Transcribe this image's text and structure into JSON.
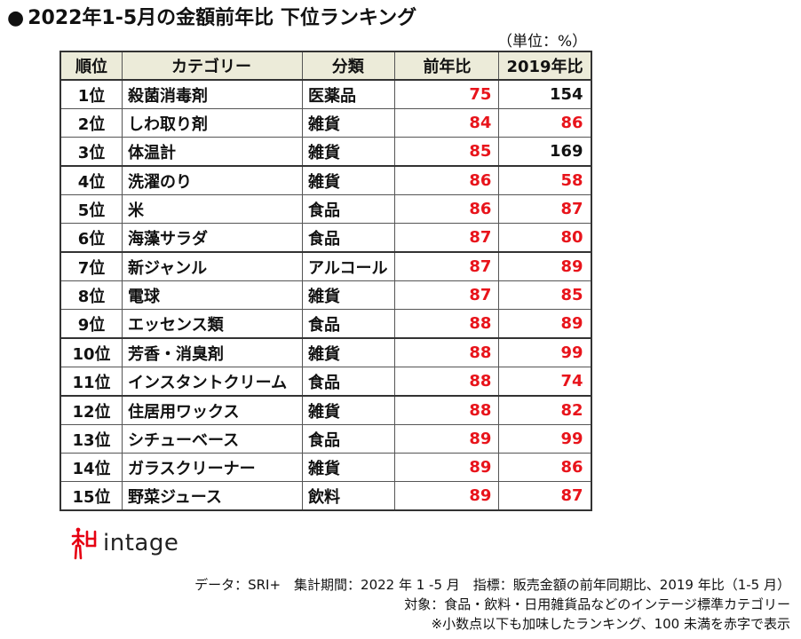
{
  "title": {
    "bullet": "●",
    "text": "2022年1-5月の金額前年比 下位ランキング"
  },
  "unit_label": "（単位：%）",
  "table": {
    "headers": [
      "順位",
      "カテゴリー",
      "分類",
      "前年比",
      "2019年比"
    ],
    "rows": [
      {
        "rank": "1位",
        "category": "殺菌消毒剤",
        "class": "医薬品",
        "yoy": "75",
        "vs2019": "154"
      },
      {
        "rank": "2位",
        "category": "しわ取り剤",
        "class": "雑貨",
        "yoy": "84",
        "vs2019": "86"
      },
      {
        "rank": "3位",
        "category": "体温計",
        "class": "雑貨",
        "yoy": "85",
        "vs2019": "169"
      },
      {
        "rank": "4位",
        "category": "洗濯のり",
        "class": "雑貨",
        "yoy": "86",
        "vs2019": "58"
      },
      {
        "rank": "5位",
        "category": "米",
        "class": "食品",
        "yoy": "86",
        "vs2019": "87"
      },
      {
        "rank": "6位",
        "category": "海藻サラダ",
        "class": "食品",
        "yoy": "87",
        "vs2019": "80"
      },
      {
        "rank": "7位",
        "category": "新ジャンル",
        "class": "アルコール",
        "yoy": "87",
        "vs2019": "89"
      },
      {
        "rank": "8位",
        "category": "電球",
        "class": "雑貨",
        "yoy": "87",
        "vs2019": "85"
      },
      {
        "rank": "9位",
        "category": "エッセンス類",
        "class": "食品",
        "yoy": "88",
        "vs2019": "89"
      },
      {
        "rank": "10位",
        "category": "芳香・消臭剤",
        "class": "雑貨",
        "yoy": "88",
        "vs2019": "99"
      },
      {
        "rank": "11位",
        "category": "インスタントクリーム",
        "class": "食品",
        "yoy": "88",
        "vs2019": "74"
      },
      {
        "rank": "12位",
        "category": "住居用ワックス",
        "class": "雑貨",
        "yoy": "88",
        "vs2019": "82"
      },
      {
        "rank": "13位",
        "category": "シチューベース",
        "class": "食品",
        "yoy": "89",
        "vs2019": "99"
      },
      {
        "rank": "14位",
        "category": "ガラスクリーナー",
        "class": "雑貨",
        "yoy": "89",
        "vs2019": "86"
      },
      {
        "rank": "15位",
        "category": "野菜ジュース",
        "class": "飲料",
        "yoy": "89",
        "vs2019": "87"
      }
    ]
  },
  "colors": {
    "below_100": "#e8141b",
    "at_or_above_100": "#111111",
    "header_bg": "#ecebd9",
    "logo_red": "#e60012"
  },
  "logo": {
    "icon": "intage-figure-icon",
    "wordmark": "intage"
  },
  "notes": [
    "データ：SRI+　集計期間：2022 年 1 -5 月　指標：販売金額の前年同期比、2019 年比（1-5 月）",
    "対象：食品・飲料・日用雑貨品などのインテージ標準カテゴリー",
    "※小数点以下も加味したランキング、100 未満を赤字で表示"
  ]
}
